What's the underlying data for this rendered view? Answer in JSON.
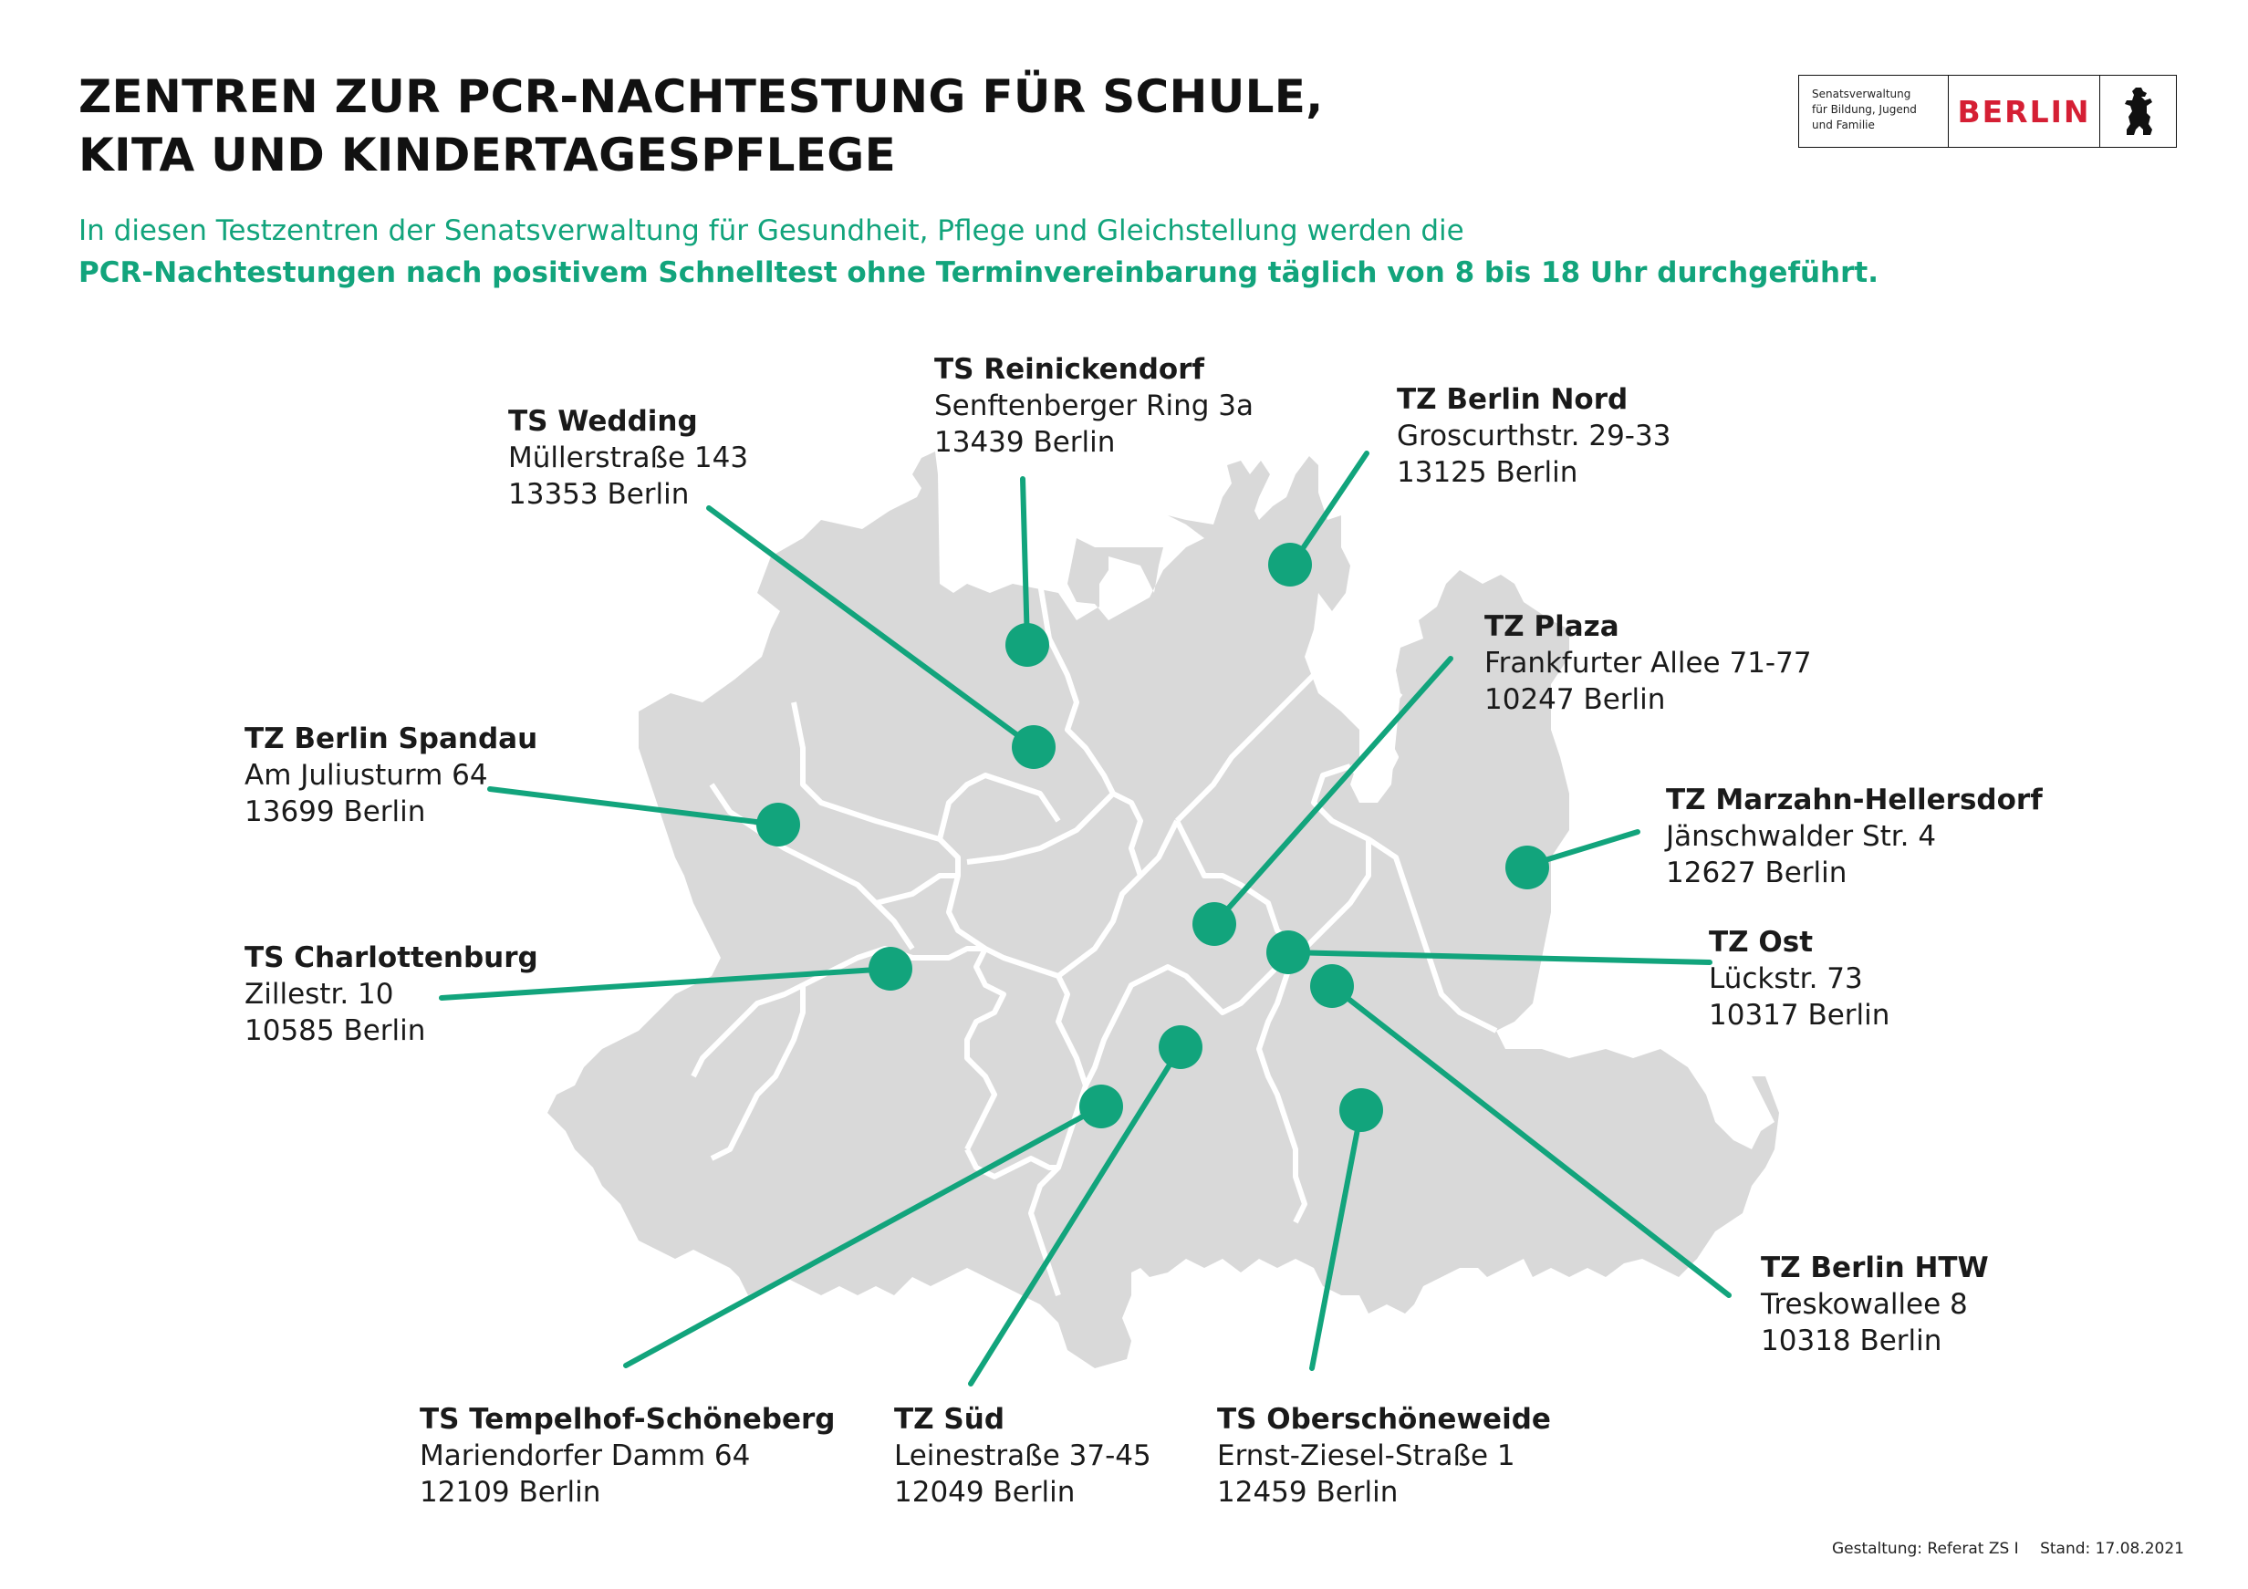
{
  "header": {
    "title_line1": "ZENTREN ZUR PCR-NACHTESTUNG FÜR SCHULE,",
    "title_line2": "KITA UND KINDERTAGESPFLEGE",
    "subtitle_line1": "In diesen Testzentren der Senatsverwaltung für Gesundheit, Pflege und Gleichstellung werden die",
    "subtitle_line2": "PCR-Nachtestungen nach positivem Schnelltest ohne Terminvereinbarung täglich von 8 bis 18 Uhr durchgeführt."
  },
  "logo": {
    "dept_line1": "Senatsverwaltung",
    "dept_line2": "für Bildung, Jugend",
    "dept_line3": "und Familie",
    "city": "BERLIN",
    "icon": "berlin-bear-icon"
  },
  "colors": {
    "accent": "#12a47c",
    "map_fill": "#d9d9d9",
    "district_border": "#ffffff",
    "brand_red": "#d51f34"
  },
  "locations": [
    {
      "name": "TS Reinickendorf",
      "street": "Senftenberger Ring 3a",
      "city": "13439 Berlin"
    },
    {
      "name": "TZ Berlin Nord",
      "street": "Groscurthstr. 29-33",
      "city": "13125 Berlin"
    },
    {
      "name": "TS Wedding",
      "street": "Müllerstraße 143",
      "city": "13353 Berlin"
    },
    {
      "name": "TZ Plaza",
      "street": "Frankfurter Allee 71-77",
      "city": "10247 Berlin"
    },
    {
      "name": "TZ Berlin Spandau",
      "street": "Am Juliusturm 64",
      "city": "13699 Berlin"
    },
    {
      "name": "TZ Marzahn-Hellersdorf",
      "street": "Jänschwalder Str. 4",
      "city": "12627 Berlin"
    },
    {
      "name": "TS Charlottenburg",
      "street": "Zillestr. 10",
      "city": "10585 Berlin"
    },
    {
      "name": "TZ Ost",
      "street": "Lückstr. 73",
      "city": "10317 Berlin"
    },
    {
      "name": "TZ Berlin HTW",
      "street": "Treskowallee 8",
      "city": "10318 Berlin"
    },
    {
      "name": "TS Tempelhof-Schöneberg",
      "street": "Mariendorfer Damm 64",
      "city": "12109 Berlin"
    },
    {
      "name": "TZ Süd",
      "street": "Leinestraße 37-45",
      "city": "12049 Berlin"
    },
    {
      "name": "TS Oberschöneweide",
      "street": "Ernst-Ziesel-Straße 1",
      "city": "12459 Berlin"
    }
  ],
  "footer": {
    "design": "Gestaltung: Referat ZS I",
    "date": "Stand: 17.08.2021"
  }
}
